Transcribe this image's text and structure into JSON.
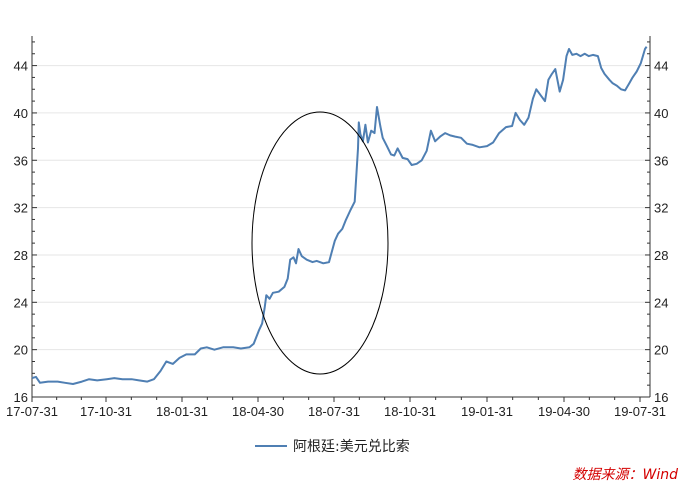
{
  "chart_data": {
    "type": "line",
    "title": "",
    "xlabel": "",
    "ylabel": "",
    "ylim": [
      16,
      46.5
    ],
    "y_ticks": [
      16,
      20,
      24,
      28,
      32,
      36,
      40,
      44
    ],
    "x_tick_labels": [
      "17-07-31",
      "17-10-31",
      "18-01-31",
      "18-04-30",
      "18-07-31",
      "18-10-31",
      "19-01-31",
      "19-04-30",
      "19-07-31"
    ],
    "x_tick_dates": [
      "2017-07-31",
      "2017-10-31",
      "2018-01-31",
      "2018-04-30",
      "2018-07-31",
      "2018-10-31",
      "2019-01-31",
      "2019-04-30",
      "2019-07-31"
    ],
    "grid": true,
    "dual_y_axis": true,
    "legend_position": "bottom",
    "series": [
      {
        "name": "阿根廷:美元兑比索",
        "color": "#4f7fb3",
        "points": [
          [
            "2017-07-31",
            17.6
          ],
          [
            "2017-08-05",
            17.7
          ],
          [
            "2017-08-10",
            17.2
          ],
          [
            "2017-08-20",
            17.3
          ],
          [
            "2017-09-01",
            17.3
          ],
          [
            "2017-09-10",
            17.2
          ],
          [
            "2017-09-20",
            17.1
          ],
          [
            "2017-10-01",
            17.3
          ],
          [
            "2017-10-10",
            17.5
          ],
          [
            "2017-10-20",
            17.4
          ],
          [
            "2017-11-01",
            17.5
          ],
          [
            "2017-11-10",
            17.6
          ],
          [
            "2017-11-20",
            17.5
          ],
          [
            "2017-12-01",
            17.5
          ],
          [
            "2017-12-10",
            17.4
          ],
          [
            "2017-12-20",
            17.3
          ],
          [
            "2017-12-28",
            17.5
          ],
          [
            "2018-01-05",
            18.2
          ],
          [
            "2018-01-12",
            19.0
          ],
          [
            "2018-01-20",
            18.8
          ],
          [
            "2018-01-28",
            19.3
          ],
          [
            "2018-02-05",
            19.6
          ],
          [
            "2018-02-15",
            19.6
          ],
          [
            "2018-02-22",
            20.1
          ],
          [
            "2018-03-01",
            20.2
          ],
          [
            "2018-03-10",
            20.0
          ],
          [
            "2018-03-20",
            20.2
          ],
          [
            "2018-04-01",
            20.2
          ],
          [
            "2018-04-10",
            20.1
          ],
          [
            "2018-04-20",
            20.2
          ],
          [
            "2018-04-25",
            20.5
          ],
          [
            "2018-05-01",
            21.6
          ],
          [
            "2018-05-05",
            22.2
          ],
          [
            "2018-05-08",
            23.5
          ],
          [
            "2018-05-10",
            24.6
          ],
          [
            "2018-05-14",
            24.3
          ],
          [
            "2018-05-18",
            24.8
          ],
          [
            "2018-05-25",
            24.9
          ],
          [
            "2018-06-01",
            25.3
          ],
          [
            "2018-06-05",
            26.0
          ],
          [
            "2018-06-08",
            27.6
          ],
          [
            "2018-06-12",
            27.8
          ],
          [
            "2018-06-15",
            27.3
          ],
          [
            "2018-06-18",
            28.5
          ],
          [
            "2018-06-22",
            27.9
          ],
          [
            "2018-06-28",
            27.6
          ],
          [
            "2018-07-05",
            27.4
          ],
          [
            "2018-07-10",
            27.5
          ],
          [
            "2018-07-18",
            27.3
          ],
          [
            "2018-07-25",
            27.4
          ],
          [
            "2018-08-01",
            29.2
          ],
          [
            "2018-08-05",
            29.8
          ],
          [
            "2018-08-10",
            30.2
          ],
          [
            "2018-08-14",
            30.9
          ],
          [
            "2018-08-20",
            31.8
          ],
          [
            "2018-08-25",
            32.5
          ],
          [
            "2018-08-29",
            37.0
          ],
          [
            "2018-08-30",
            39.2
          ],
          [
            "2018-09-01",
            38.2
          ],
          [
            "2018-09-04",
            37.6
          ],
          [
            "2018-09-07",
            39.0
          ],
          [
            "2018-09-10",
            37.5
          ],
          [
            "2018-09-14",
            38.5
          ],
          [
            "2018-09-18",
            38.3
          ],
          [
            "2018-09-21",
            40.5
          ],
          [
            "2018-09-25",
            38.9
          ],
          [
            "2018-09-28",
            37.9
          ],
          [
            "2018-10-03",
            37.2
          ],
          [
            "2018-10-08",
            36.5
          ],
          [
            "2018-10-12",
            36.4
          ],
          [
            "2018-10-16",
            37.0
          ],
          [
            "2018-10-22",
            36.2
          ],
          [
            "2018-10-28",
            36.1
          ],
          [
            "2018-11-02",
            35.6
          ],
          [
            "2018-11-08",
            35.7
          ],
          [
            "2018-11-14",
            36.0
          ],
          [
            "2018-11-20",
            36.8
          ],
          [
            "2018-11-25",
            38.5
          ],
          [
            "2018-11-30",
            37.6
          ],
          [
            "2018-12-06",
            38.0
          ],
          [
            "2018-12-12",
            38.3
          ],
          [
            "2018-12-18",
            38.1
          ],
          [
            "2018-12-24",
            38.0
          ],
          [
            "2018-12-31",
            37.9
          ],
          [
            "2019-01-07",
            37.4
          ],
          [
            "2019-01-14",
            37.3
          ],
          [
            "2019-01-22",
            37.1
          ],
          [
            "2019-01-31",
            37.2
          ],
          [
            "2019-02-07",
            37.5
          ],
          [
            "2019-02-14",
            38.3
          ],
          [
            "2019-02-22",
            38.8
          ],
          [
            "2019-03-01",
            38.9
          ],
          [
            "2019-03-05",
            40.0
          ],
          [
            "2019-03-10",
            39.4
          ],
          [
            "2019-03-15",
            39.0
          ],
          [
            "2019-03-20",
            39.6
          ],
          [
            "2019-03-25",
            41.2
          ],
          [
            "2019-03-29",
            42.0
          ],
          [
            "2019-04-03",
            41.5
          ],
          [
            "2019-04-08",
            41.0
          ],
          [
            "2019-04-12",
            42.8
          ],
          [
            "2019-04-16",
            43.3
          ],
          [
            "2019-04-20",
            43.7
          ],
          [
            "2019-04-25",
            41.8
          ],
          [
            "2019-04-29",
            42.8
          ],
          [
            "2019-05-03",
            44.8
          ],
          [
            "2019-05-06",
            45.4
          ],
          [
            "2019-05-10",
            44.9
          ],
          [
            "2019-05-15",
            45.0
          ],
          [
            "2019-05-20",
            44.8
          ],
          [
            "2019-05-25",
            45.0
          ],
          [
            "2019-05-30",
            44.8
          ],
          [
            "2019-06-04",
            44.9
          ],
          [
            "2019-06-10",
            44.8
          ],
          [
            "2019-06-14",
            43.8
          ],
          [
            "2019-06-18",
            43.3
          ],
          [
            "2019-06-24",
            42.8
          ],
          [
            "2019-06-28",
            42.5
          ],
          [
            "2019-07-03",
            42.3
          ],
          [
            "2019-07-08",
            42.0
          ],
          [
            "2019-07-13",
            41.9
          ],
          [
            "2019-07-18",
            42.5
          ],
          [
            "2019-07-22",
            43.0
          ],
          [
            "2019-07-27",
            43.5
          ],
          [
            "2019-08-01",
            44.2
          ],
          [
            "2019-08-06",
            45.4
          ],
          [
            "2019-08-08",
            45.6
          ]
        ]
      }
    ]
  },
  "source_label": "数据来源：Wind"
}
